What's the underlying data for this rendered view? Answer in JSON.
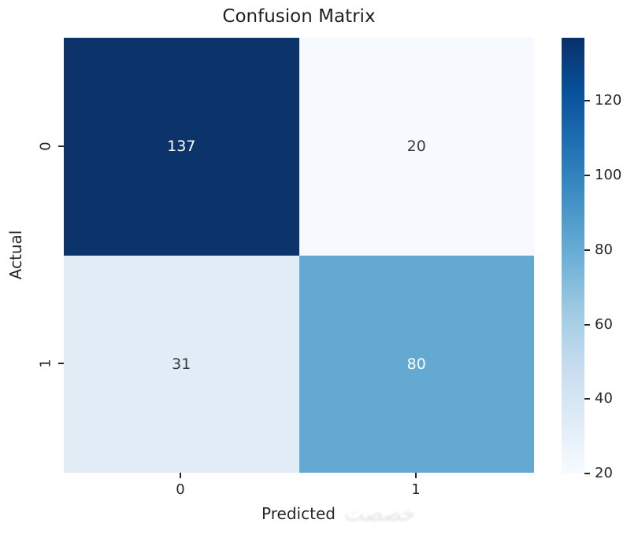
{
  "page": {
    "background": "#ffffff",
    "watermark_text": "خصصت"
  },
  "chart_data": {
    "type": "heatmap",
    "title": "Confusion Matrix",
    "xlabel": "Predicted",
    "ylabel": "Actual",
    "x_tick_labels": [
      "0",
      "1"
    ],
    "y_tick_labels": [
      "0",
      "1"
    ],
    "matrix": [
      [
        137,
        20
      ],
      [
        31,
        80
      ]
    ],
    "cell_colors": [
      [
        "#0d336b",
        "#f6fafe"
      ],
      [
        "#e1ecf7",
        "#64a9d2"
      ]
    ],
    "cell_text_colors": [
      [
        "#ffffff",
        "#3b3b3b"
      ],
      [
        "#3b3b3b",
        "#ffffff"
      ]
    ],
    "colormap": "Blues",
    "grid": false,
    "colorbar": {
      "position": "right",
      "vmin": 20,
      "vmax": 137,
      "tick_values": [
        120,
        100,
        80,
        60,
        40,
        20
      ],
      "gradient_stops": [
        "#f7fbff",
        "#deebf7",
        "#c6dbef",
        "#9ecae1",
        "#6baed6",
        "#4292c6",
        "#2171b5",
        "#08519c",
        "#08306b"
      ]
    }
  }
}
